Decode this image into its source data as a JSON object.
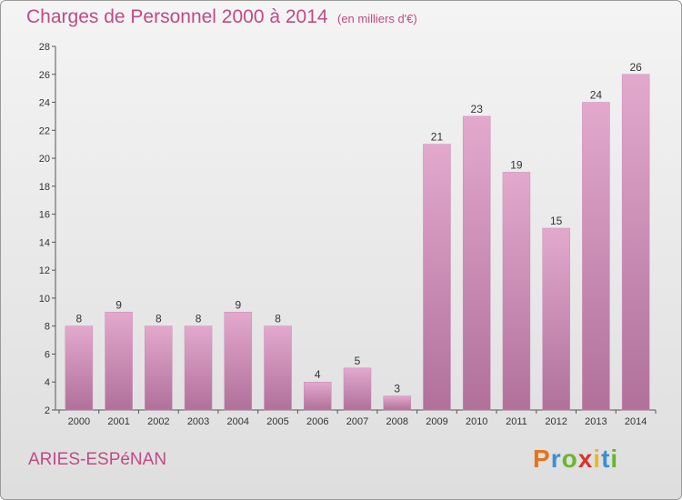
{
  "header": {
    "title": "Charges de Personnel 2000 à 2014",
    "subtitle": "(en milliers d'€)"
  },
  "footer": {
    "commune": "ARIES-ESPéNAN",
    "logo": {
      "letters": [
        "P",
        "r",
        "o",
        "x",
        "i",
        "t",
        "i"
      ],
      "colors": [
        "#e8731a",
        "#3a8fd6",
        "#6bb52d",
        "#d8322f",
        "#f0b51f",
        "#3a8fd6",
        "#6bb52d"
      ]
    }
  },
  "colors": {
    "accent": "#c04a86",
    "bar_top": "#e3a9cd",
    "bar_bottom": "#b0709a"
  },
  "chart_data": {
    "type": "bar",
    "categories": [
      "2000",
      "2001",
      "2002",
      "2003",
      "2004",
      "2005",
      "2006",
      "2007",
      "2008",
      "2009",
      "2010",
      "2011",
      "2012",
      "2013",
      "2014"
    ],
    "values": [
      8,
      9,
      8,
      8,
      9,
      8,
      4,
      5,
      3,
      21,
      23,
      19,
      15,
      24,
      26
    ],
    "ylim": [
      2,
      28
    ],
    "yticks": [
      2,
      4,
      6,
      8,
      10,
      12,
      14,
      16,
      18,
      20,
      22,
      24,
      26,
      28
    ],
    "grid": false,
    "data_labels": true
  }
}
